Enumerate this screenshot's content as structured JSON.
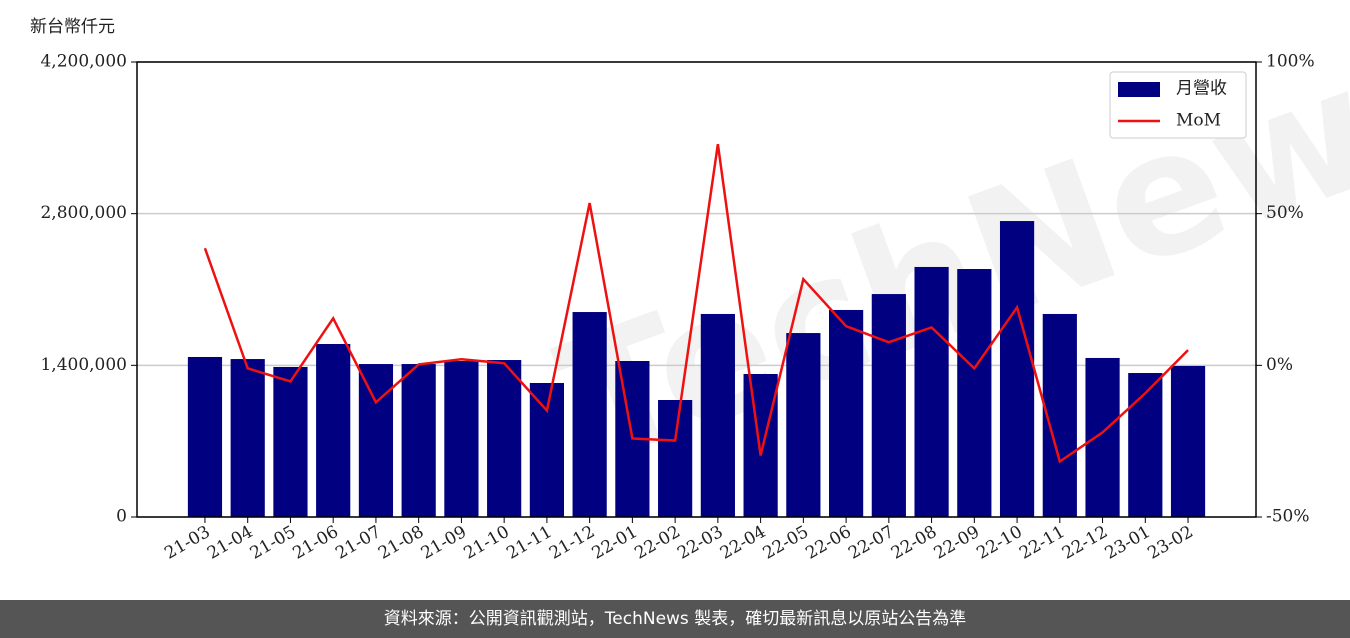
{
  "chart_data": {
    "type": "bar-line",
    "y_label": "新台幣仟元",
    "watermark": "TechNews",
    "footer": "資料來源：公開資訊觀測站，TechNews 製表，確切最新訊息以原站公告為準",
    "categories": [
      "21-03",
      "21-04",
      "21-05",
      "21-06",
      "21-07",
      "21-08",
      "21-09",
      "21-10",
      "21-11",
      "21-12",
      "22-01",
      "22-02",
      "22-03",
      "22-04",
      "22-05",
      "22-06",
      "22-07",
      "22-08",
      "22-09",
      "22-10",
      "22-11",
      "22-12",
      "23-01",
      "23-02"
    ],
    "series": [
      {
        "name": "月營收",
        "type": "bar",
        "color": "#000080",
        "values": [
          1477000,
          1458000,
          1385000,
          1597000,
          1412000,
          1412000,
          1440000,
          1449000,
          1237000,
          1892000,
          1440000,
          1080000,
          1874000,
          1320000,
          1698000,
          1911000,
          2058000,
          2308000,
          2289000,
          2732000,
          1874000,
          1468000,
          1329000,
          1394000
        ]
      },
      {
        "name": "MoM",
        "type": "line",
        "color": "#ee1111",
        "axis": "y2",
        "values": [
          38.6,
          -1.0,
          -5.3,
          15.5,
          -12.2,
          0.3,
          2.0,
          0.7,
          -14.9,
          53.5,
          -24.1,
          -24.8,
          72.9,
          -29.7,
          28.4,
          12.9,
          7.6,
          12.5,
          -1.0,
          19.1,
          -31.7,
          -22.1,
          -9.2,
          5.0
        ]
      }
    ],
    "ylim": [
      0,
      4200000
    ],
    "yticks": [
      0,
      {
        "value": 1400000,
        "label": "1,400,000"
      },
      {
        "value": 2800000,
        "label": "2,800,000"
      },
      {
        "value": 4200000,
        "label": "4,200,000"
      }
    ],
    "y2lim": [
      -50,
      100
    ],
    "y2ticks": [
      {
        "value": -50,
        "label": "-50%"
      },
      {
        "value": 0,
        "label": "0%"
      },
      {
        "value": 50,
        "label": "50%"
      },
      {
        "value": 100,
        "label": "100%"
      }
    ],
    "grid": true,
    "legend": "upper right"
  }
}
